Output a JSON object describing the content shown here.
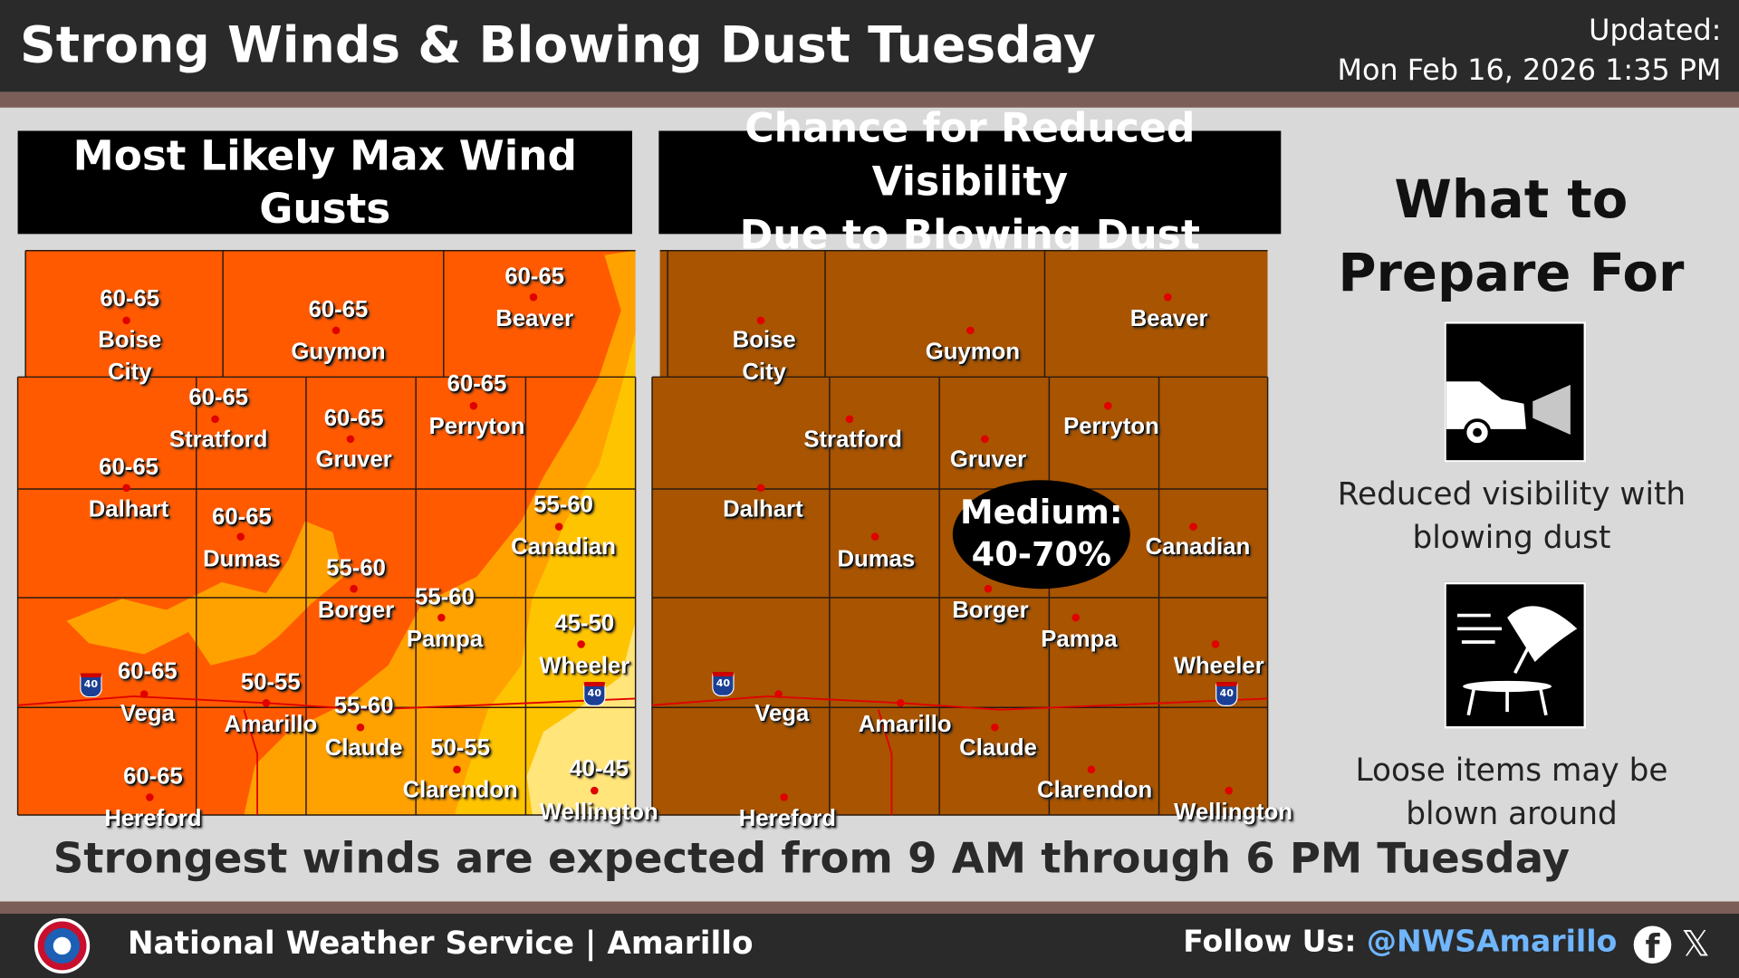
{
  "header": {
    "title": "Strong Winds & Blowing Dust Tuesday",
    "updated_label": "Updated:",
    "updated_value": "Mon Feb 16, 2026 1:35 PM"
  },
  "wind_panel": {
    "title": "Most Likely Max Wind Gusts",
    "colors": {
      "60-65": "#ff5a00",
      "55-60": "#ffa200",
      "45-55": "#ffc400",
      "40-45": "#ffe57a"
    }
  },
  "dust_panel": {
    "title_line1": "Chance for Reduced Visibility",
    "title_line2": "Due to Blowing Dust",
    "color": "#a85400",
    "risk_label": "Medium:",
    "risk_range": "40-70%"
  },
  "cities": [
    {
      "name": "Boise City",
      "line1": "Boise",
      "line2": "City",
      "gust": "60-65"
    },
    {
      "name": "Guymon",
      "line1": "Guymon",
      "gust": "60-65"
    },
    {
      "name": "Beaver",
      "line1": "Beaver",
      "gust": "60-65"
    },
    {
      "name": "Stratford",
      "line1": "Stratford",
      "gust": "60-65"
    },
    {
      "name": "Gruver",
      "line1": "Gruver",
      "gust": "60-65"
    },
    {
      "name": "Perryton",
      "line1": "Perryton",
      "gust": "60-65"
    },
    {
      "name": "Dalhart",
      "line1": "Dalhart",
      "gust": "60-65"
    },
    {
      "name": "Dumas",
      "line1": "Dumas",
      "gust": "60-65"
    },
    {
      "name": "Borger",
      "line1": "Borger",
      "gust": "55-60"
    },
    {
      "name": "Pampa",
      "line1": "Pampa",
      "gust": "55-60"
    },
    {
      "name": "Canadian",
      "line1": "Canadian",
      "gust": "55-60"
    },
    {
      "name": "Wheeler",
      "line1": "Wheeler",
      "gust": "45-50"
    },
    {
      "name": "Vega",
      "line1": "Vega",
      "gust": "60-65"
    },
    {
      "name": "Amarillo",
      "line1": "Amarillo",
      "gust": "50-55"
    },
    {
      "name": "Claude",
      "line1": "Claude",
      "gust": "55-60"
    },
    {
      "name": "Clarendon",
      "line1": "Clarendon",
      "gust": "50-55"
    },
    {
      "name": "Hereford",
      "line1": "Hereford",
      "gust": "60-65"
    },
    {
      "name": "Wellington",
      "line1": "Wellington",
      "gust": "40-45"
    }
  ],
  "interstate": "40",
  "prepare": {
    "title_line1": "What to",
    "title_line2": "Prepare For",
    "item1_line1": "Reduced visibility with",
    "item1_line2": "blowing dust",
    "item1_icon": "car-headlights-dust-icon",
    "item2_line1": "Loose items may be",
    "item2_line2": "blown around",
    "item2_icon": "blowing-umbrella-table-icon"
  },
  "timing": "Strongest winds are expected from 9 AM through 6 PM Tuesday",
  "footer": {
    "office": "National Weather Service | Amarillo",
    "follow_label": "Follow Us:",
    "handle": "@NWSAmarillo",
    "social_icons": [
      "facebook-icon",
      "x-icon"
    ]
  }
}
